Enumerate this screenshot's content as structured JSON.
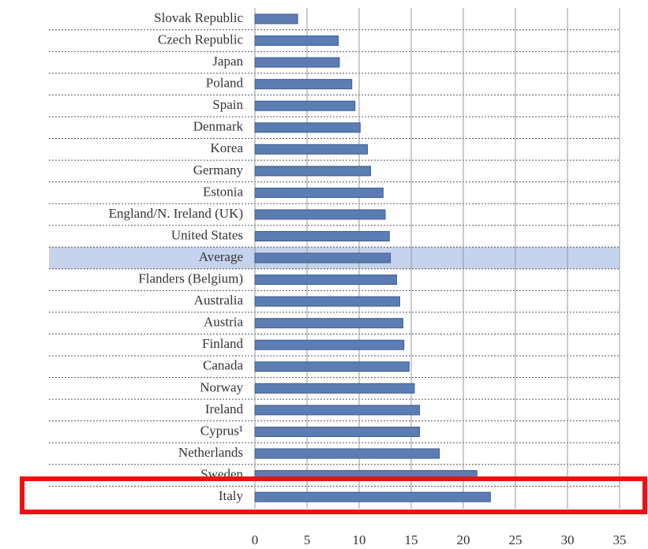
{
  "chart_data": {
    "type": "barh",
    "categories": [
      "Slovak Republic",
      "Czech Republic",
      "Japan",
      "Poland",
      "Spain",
      "Denmark",
      "Korea",
      "Germany",
      "Estonia",
      "England/N. Ireland (UK)",
      "United States",
      "Average",
      "Flanders (Belgium)",
      "Australia",
      "Austria",
      "Finland",
      "Canada",
      "Norway",
      "Ireland",
      "Cyprus¹",
      "Netherlands",
      "Sweden",
      "Italy"
    ],
    "values": [
      4.1,
      8.0,
      8.1,
      9.3,
      9.6,
      10.1,
      10.8,
      11.1,
      12.3,
      12.5,
      12.9,
      13.0,
      13.6,
      13.9,
      14.2,
      14.3,
      14.8,
      15.3,
      15.8,
      15.8,
      17.7,
      21.3,
      22.6
    ],
    "color": "#5b7db3",
    "highlight_category": 11,
    "highlight_color": "#c5d3ec",
    "xlim": [
      0,
      35
    ],
    "xticks": [
      0,
      5,
      10,
      15,
      20,
      25,
      30,
      35
    ],
    "grid": true
  }
}
